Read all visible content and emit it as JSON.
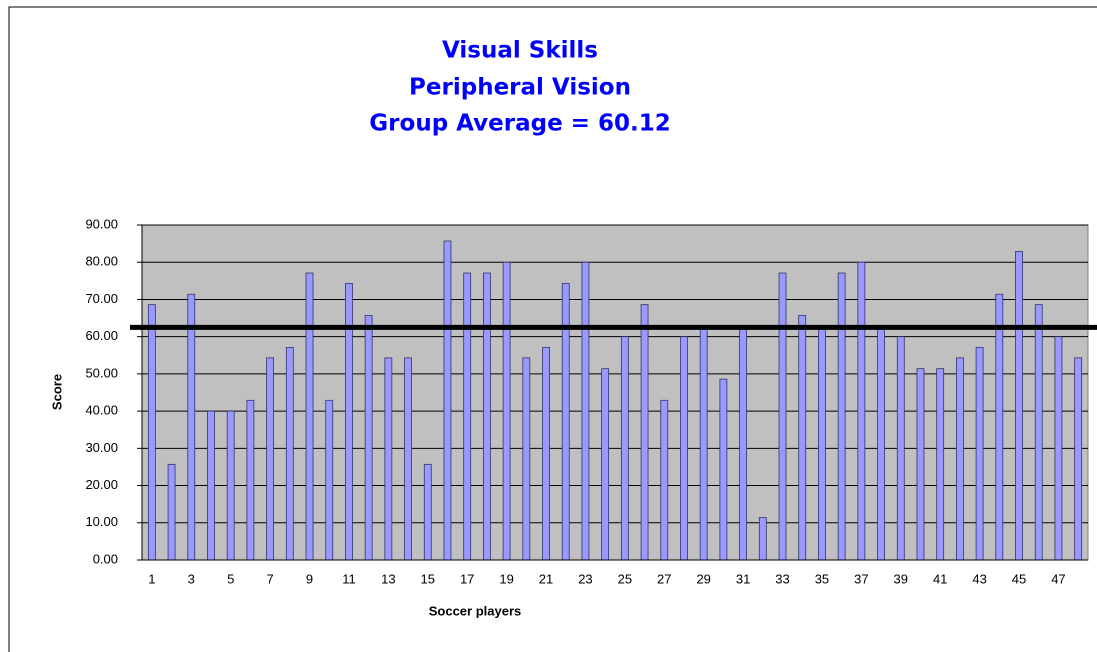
{
  "chart_data": {
    "type": "bar",
    "title": [
      "Visual Skills",
      "Peripheral Vision",
      "Group Average = 60.12"
    ],
    "x_label": "Soccer players",
    "y_label": "Score",
    "categories": [
      1,
      null,
      3,
      null,
      5,
      null,
      7,
      null,
      9,
      null,
      11,
      null,
      13,
      null,
      15,
      null,
      17,
      null,
      19,
      null,
      21,
      null,
      23,
      null,
      25,
      null,
      27,
      null,
      29,
      null,
      31,
      null,
      33,
      null,
      35,
      null,
      37,
      null,
      39,
      null,
      41,
      null,
      43,
      null,
      45,
      null,
      47,
      null
    ],
    "values": [
      68.6,
      25.7,
      71.4,
      40,
      40,
      42.9,
      54.3,
      57.1,
      77.1,
      42.9,
      74.3,
      65.7,
      54.3,
      54.3,
      25.7,
      85.7,
      77.1,
      77.1,
      80,
      54.3,
      57.1,
      74.3,
      80,
      51.4,
      60,
      68.6,
      42.9,
      60,
      62.9,
      48.6,
      62.9,
      11.4,
      77.1,
      65.7,
      62.9,
      77.1,
      80,
      62.9,
      60,
      51.4,
      51.4,
      54.3,
      57.1,
      71.4,
      82.9,
      68.6,
      60,
      54.3
    ],
    "color": "#9999ff",
    "reference_line": 62.5,
    "ylim": [
      0,
      90
    ],
    "yticks": [
      {
        "value": 0,
        "label": "0.00"
      },
      {
        "value": 10,
        "label": "10.00"
      },
      {
        "value": 20,
        "label": "20.00"
      },
      {
        "value": 30,
        "label": "30.00"
      },
      {
        "value": 40,
        "label": "40.00"
      },
      {
        "value": 50,
        "label": "50.00"
      },
      {
        "value": 60,
        "label": "60.00"
      },
      {
        "value": 70,
        "label": "70.00"
      },
      {
        "value": 80,
        "label": "80.00"
      },
      {
        "value": 90,
        "label": "90.00"
      }
    ],
    "grid": true
  }
}
